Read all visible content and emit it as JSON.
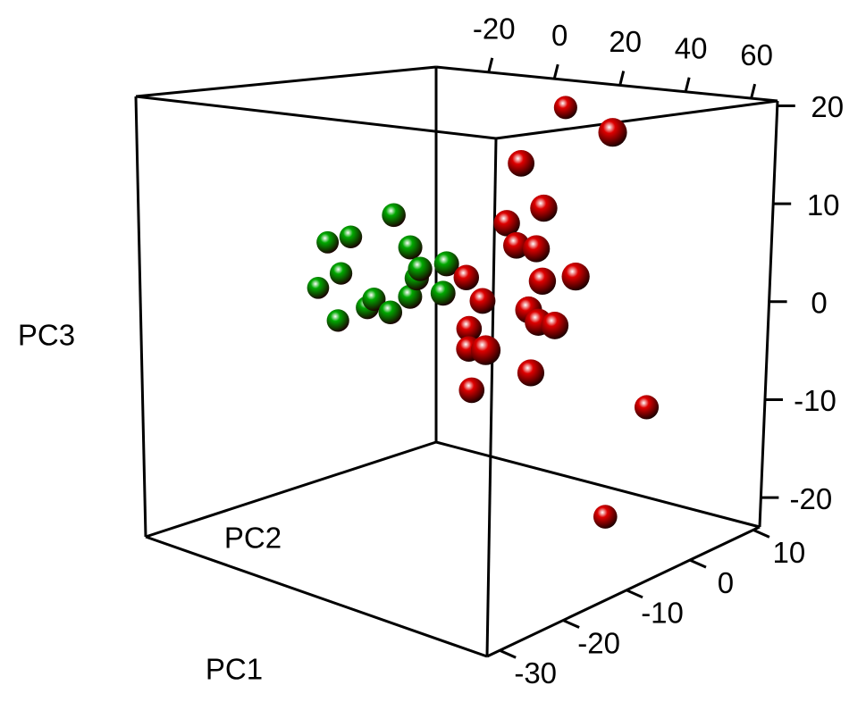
{
  "chart_data": {
    "type": "scatter3d",
    "xlabel": "PC1",
    "ylabel": "PC2",
    "zlabel": "PC3",
    "xlim": [
      -36,
      68
    ],
    "ylim": [
      -32,
      11
    ],
    "zlim": [
      -23,
      20.5
    ],
    "xticks": [
      -20,
      0,
      20,
      40,
      60
    ],
    "yticks": [
      -30,
      -20,
      -10,
      0,
      10
    ],
    "zticks": [
      -20,
      -10,
      0,
      10,
      20
    ],
    "series": [
      {
        "color": "#dd0000",
        "x": [
          22,
          60,
          33,
          40,
          29,
          32,
          38,
          40,
          50,
          17,
          22,
          36,
          39,
          44,
          18,
          18,
          41,
          37,
          19,
          49,
          37
        ],
        "y": [
          2,
          -10,
          -10,
          -10,
          -10,
          -10,
          -10,
          -10,
          -10,
          -10,
          -10,
          -10,
          -10,
          -10,
          -10,
          -10,
          -19,
          -10,
          -10,
          2,
          2
        ],
        "z": [
          19,
          19,
          15,
          11,
          9,
          7,
          7,
          4,
          5,
          3,
          1,
          1,
          0,
          0,
          -2,
          -4,
          -1,
          -5,
          -8,
          -10,
          -22
        ]
      },
      {
        "color": "#00a800",
        "x": [
          -5,
          -25,
          -18,
          0,
          -21,
          3,
          11,
          2,
          -28,
          -11,
          0,
          10,
          -13,
          -6,
          -22
        ],
        "y": [
          -10,
          -10,
          -10,
          -10,
          -10,
          -10,
          -10,
          -10,
          -10,
          -10,
          -10,
          -10,
          -10,
          -10,
          -10
        ],
        "z": [
          8,
          4,
          5,
          5,
          1,
          3,
          4,
          2,
          -1,
          -1,
          0,
          1,
          -2,
          -2,
          -4
        ]
      }
    ]
  }
}
